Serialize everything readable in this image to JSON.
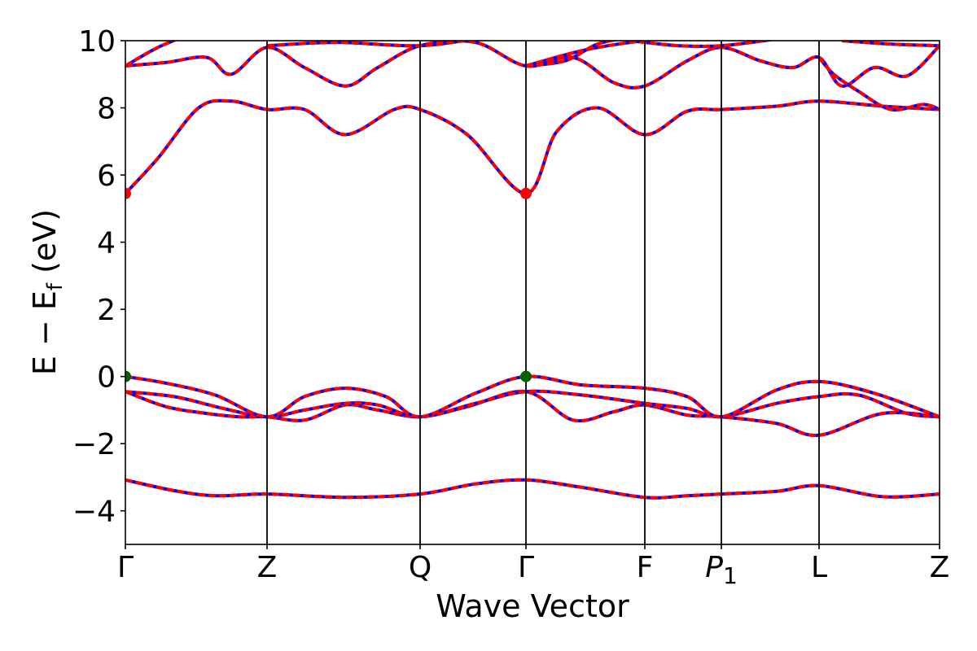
{
  "chart_data": {
    "type": "line",
    "title": "",
    "xlabel": "Wave Vector",
    "ylabel_parts": {
      "main": "E − E",
      "subscript": "f",
      "unit": " (eV)"
    },
    "ylim": [
      -5,
      10
    ],
    "yticks": [
      -4,
      -2,
      0,
      2,
      4,
      6,
      8,
      10
    ],
    "grid": false,
    "legend": "none",
    "colors": {
      "band": "#ff0000",
      "band_dash": "#0000ff",
      "cbm": "#ff0000",
      "vbm": "#006400",
      "kline": "#000000"
    },
    "kpath": [
      {
        "label": "Γ",
        "k": 0.0
      },
      {
        "label": "Z",
        "k": 0.174
      },
      {
        "label": "Q",
        "k": 0.362
      },
      {
        "label": "Γ",
        "k": 0.492
      },
      {
        "label": "F",
        "k": 0.638
      },
      {
        "label": "P",
        "sub": "1",
        "k": 0.732
      },
      {
        "label": "L",
        "k": 0.852
      },
      {
        "label": "Z",
        "k": 1.0
      }
    ],
    "series": [
      {
        "values": [
          [
            0,
            -3.08
          ],
          [
            0.06,
            -3.4
          ],
          [
            0.11,
            -3.55
          ],
          [
            0.174,
            -3.5
          ],
          [
            0.27,
            -3.6
          ],
          [
            0.362,
            -3.5
          ],
          [
            0.43,
            -3.2
          ],
          [
            0.492,
            -3.08
          ],
          [
            0.56,
            -3.3
          ],
          [
            0.638,
            -3.6
          ],
          [
            0.69,
            -3.55
          ],
          [
            0.732,
            -3.5
          ],
          [
            0.8,
            -3.42
          ],
          [
            0.852,
            -3.25
          ],
          [
            0.93,
            -3.58
          ],
          [
            1.0,
            -3.5
          ]
        ]
      },
      {
        "values": [
          [
            0,
            -0.45
          ],
          [
            0.05,
            -0.9
          ],
          [
            0.1,
            -1.1
          ],
          [
            0.14,
            -1.2
          ],
          [
            0.174,
            -1.2
          ],
          [
            0.22,
            -1.3
          ],
          [
            0.27,
            -0.85
          ],
          [
            0.31,
            -1.0
          ],
          [
            0.362,
            -1.2
          ],
          [
            0.42,
            -0.9
          ],
          [
            0.492,
            -0.45
          ],
          [
            0.55,
            -1.3
          ],
          [
            0.6,
            -1.05
          ],
          [
            0.638,
            -0.85
          ],
          [
            0.69,
            -1.15
          ],
          [
            0.732,
            -1.2
          ],
          [
            0.8,
            -1.4
          ],
          [
            0.852,
            -1.75
          ],
          [
            0.93,
            -1.1
          ],
          [
            1.0,
            -1.2
          ]
        ]
      },
      {
        "values": [
          [
            0,
            -0.45
          ],
          [
            0.06,
            -0.6
          ],
          [
            0.12,
            -0.95
          ],
          [
            0.174,
            -1.2
          ],
          [
            0.22,
            -1.0
          ],
          [
            0.27,
            -0.8
          ],
          [
            0.31,
            -0.85
          ],
          [
            0.362,
            -1.2
          ],
          [
            0.43,
            -0.8
          ],
          [
            0.492,
            -0.45
          ],
          [
            0.56,
            -0.55
          ],
          [
            0.638,
            -0.8
          ],
          [
            0.69,
            -0.95
          ],
          [
            0.732,
            -1.2
          ],
          [
            0.8,
            -0.8
          ],
          [
            0.852,
            -0.6
          ],
          [
            0.9,
            -0.55
          ],
          [
            0.96,
            -1.1
          ],
          [
            1.0,
            -1.2
          ]
        ]
      },
      {
        "values": [
          [
            0,
            0.0
          ],
          [
            0.05,
            -0.2
          ],
          [
            0.11,
            -0.55
          ],
          [
            0.174,
            -1.2
          ],
          [
            0.22,
            -0.6
          ],
          [
            0.27,
            -0.35
          ],
          [
            0.32,
            -0.6
          ],
          [
            0.362,
            -1.2
          ],
          [
            0.43,
            -0.5
          ],
          [
            0.492,
            0.0
          ],
          [
            0.56,
            -0.25
          ],
          [
            0.638,
            -0.35
          ],
          [
            0.69,
            -0.6
          ],
          [
            0.732,
            -1.2
          ],
          [
            0.8,
            -0.4
          ],
          [
            0.852,
            -0.15
          ],
          [
            0.92,
            -0.5
          ],
          [
            1.0,
            -1.2
          ]
        ]
      },
      {
        "values": [
          [
            0,
            5.45
          ],
          [
            0.04,
            6.5
          ],
          [
            0.09,
            8.0
          ],
          [
            0.13,
            8.2
          ],
          [
            0.174,
            7.95
          ],
          [
            0.22,
            7.95
          ],
          [
            0.27,
            7.2
          ],
          [
            0.33,
            7.95
          ],
          [
            0.362,
            7.95
          ],
          [
            0.42,
            7.2
          ],
          [
            0.492,
            5.45
          ],
          [
            0.53,
            7.3
          ],
          [
            0.58,
            8.0
          ],
          [
            0.638,
            7.2
          ],
          [
            0.69,
            7.9
          ],
          [
            0.732,
            7.95
          ],
          [
            0.8,
            8.05
          ],
          [
            0.852,
            8.2
          ],
          [
            0.93,
            8.05
          ],
          [
            1.0,
            7.95
          ]
        ]
      },
      {
        "values": [
          [
            0,
            9.25
          ],
          [
            0.05,
            9.35
          ],
          [
            0.1,
            9.5
          ],
          [
            0.13,
            9.0
          ],
          [
            0.174,
            9.8
          ],
          [
            0.22,
            9.2
          ],
          [
            0.27,
            8.65
          ],
          [
            0.31,
            9.2
          ],
          [
            0.362,
            9.85
          ],
          [
            0.43,
            9.95
          ],
          [
            0.492,
            9.25
          ],
          [
            0.55,
            9.5
          ],
          [
            0.6,
            8.75
          ],
          [
            0.638,
            8.65
          ],
          [
            0.69,
            9.4
          ],
          [
            0.732,
            9.8
          ],
          [
            0.78,
            9.4
          ],
          [
            0.82,
            9.2
          ],
          [
            0.852,
            9.5
          ],
          [
            0.88,
            8.65
          ],
          [
            0.92,
            9.2
          ],
          [
            0.96,
            8.95
          ],
          [
            1.0,
            9.85
          ]
        ]
      },
      {
        "values": [
          [
            0,
            9.25
          ],
          [
            0.04,
            9.8
          ],
          [
            0.08,
            10.2
          ]
        ]
      },
      {
        "values": [
          [
            0.174,
            9.85
          ],
          [
            0.26,
            9.95
          ],
          [
            0.362,
            9.85
          ],
          [
            0.44,
            10.1
          ]
        ]
      },
      {
        "values": [
          [
            0.492,
            9.25
          ],
          [
            0.56,
            9.7
          ],
          [
            0.62,
            9.95
          ],
          [
            0.638,
            9.95
          ],
          [
            0.68,
            9.85
          ],
          [
            0.732,
            9.85
          ],
          [
            0.8,
            10.05
          ]
        ]
      },
      {
        "values": [
          [
            0.492,
            9.25
          ],
          [
            0.54,
            9.4
          ],
          [
            0.58,
            9.9
          ],
          [
            0.62,
            10.1
          ]
        ]
      },
      {
        "values": [
          [
            0.852,
            9.5
          ],
          [
            0.87,
            9.0
          ],
          [
            0.9,
            8.5
          ],
          [
            0.94,
            7.95
          ],
          [
            0.98,
            8.1
          ],
          [
            1.0,
            7.95
          ]
        ]
      },
      {
        "values": [
          [
            0.88,
            10.0
          ],
          [
            0.94,
            9.9
          ],
          [
            1.0,
            9.85
          ]
        ]
      }
    ],
    "markers": [
      {
        "x": 0.0,
        "y": 5.45,
        "type": "cbm"
      },
      {
        "x": 0.492,
        "y": 5.45,
        "type": "cbm"
      },
      {
        "x": 0.0,
        "y": 0.0,
        "type": "vbm"
      },
      {
        "x": 0.492,
        "y": 0.0,
        "type": "vbm"
      }
    ]
  }
}
